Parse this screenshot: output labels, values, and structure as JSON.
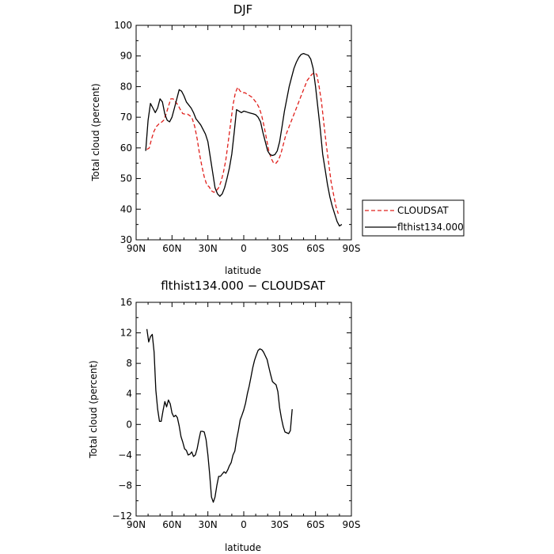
{
  "chart_data": [
    {
      "type": "line",
      "title": "DJF",
      "xlabel": "latitude",
      "ylabel": "Total cloud (percent)",
      "xlim": [
        90,
        -90
      ],
      "ylim": [
        30,
        100
      ],
      "xticks": [
        90,
        60,
        30,
        0,
        -30,
        -60,
        -90
      ],
      "xticklabels": [
        "90N",
        "60N",
        "30N",
        "0",
        "30S",
        "60S",
        "90S"
      ],
      "yticks": [
        30,
        40,
        50,
        60,
        70,
        80,
        90,
        100
      ],
      "legend": "right",
      "series": [
        {
          "name": "CLOUDSAT",
          "color": "#e0201c",
          "dash": true,
          "points": [
            [
              81,
              59.5
            ],
            [
              79,
              60
            ],
            [
              77,
              63
            ],
            [
              75,
              65.5
            ],
            [
              73,
              67
            ],
            [
              71,
              67.8
            ],
            [
              69,
              68.3
            ],
            [
              67,
              69
            ],
            [
              65,
              71
            ],
            [
              63,
              73.5
            ],
            [
              61,
              76
            ],
            [
              59,
              76
            ],
            [
              57,
              75
            ],
            [
              55,
              74
            ],
            [
              53,
              72.5
            ],
            [
              51,
              71.2
            ],
            [
              49,
              71
            ],
            [
              47,
              71
            ],
            [
              45,
              70.5
            ],
            [
              43,
              69.5
            ],
            [
              41,
              67
            ],
            [
              39,
              63
            ],
            [
              37,
              58
            ],
            [
              35,
              54
            ],
            [
              33,
              50.5
            ],
            [
              31,
              48
            ],
            [
              29,
              47.3
            ],
            [
              27,
              46
            ],
            [
              25,
              45.5
            ],
            [
              23,
              46
            ],
            [
              21,
              47
            ],
            [
              19,
              49
            ],
            [
              17,
              52
            ],
            [
              15,
              56
            ],
            [
              13,
              62
            ],
            [
              11,
              68
            ],
            [
              9,
              74
            ],
            [
              7,
              78
            ],
            [
              5,
              79.8
            ],
            [
              3,
              78.5
            ],
            [
              1,
              78
            ],
            [
              -1,
              78
            ],
            [
              -3,
              77.5
            ],
            [
              -5,
              77
            ],
            [
              -7,
              76.5
            ],
            [
              -9,
              75.5
            ],
            [
              -11,
              74.5
            ],
            [
              -13,
              73
            ],
            [
              -15,
              70.5
            ],
            [
              -17,
              67
            ],
            [
              -19,
              63
            ],
            [
              -21,
              59
            ],
            [
              -23,
              56.5
            ],
            [
              -25,
              55
            ],
            [
              -27,
              55
            ],
            [
              -29,
              56
            ],
            [
              -31,
              58
            ],
            [
              -33,
              61
            ],
            [
              -35,
              64
            ],
            [
              -37,
              66
            ],
            [
              -39,
              68
            ],
            [
              -41,
              70
            ],
            [
              -43,
              72
            ],
            [
              -45,
              74
            ],
            [
              -47,
              76
            ],
            [
              -49,
              78
            ],
            [
              -51,
              80
            ],
            [
              -53,
              82
            ],
            [
              -55,
              83
            ],
            [
              -57,
              84
            ],
            [
              -59,
              84.5
            ],
            [
              -61,
              84
            ],
            [
              -63,
              80
            ],
            [
              -65,
              75
            ],
            [
              -67,
              68
            ],
            [
              -69,
              61
            ],
            [
              -71,
              55
            ],
            [
              -73,
              49
            ],
            [
              -75,
              45
            ],
            [
              -77,
              41
            ],
            [
              -79,
              38.5
            ]
          ]
        },
        {
          "name": "flthist134.000",
          "color": "#000000",
          "dash": false,
          "points": [
            [
              82,
              59
            ],
            [
              80,
              69
            ],
            [
              78,
              74.5
            ],
            [
              76,
              73
            ],
            [
              74,
              71.5
            ],
            [
              72,
              73
            ],
            [
              70,
              76
            ],
            [
              68,
              75
            ],
            [
              66,
              71
            ],
            [
              64,
              69
            ],
            [
              62,
              68.5
            ],
            [
              60,
              70
            ],
            [
              58,
              73
            ],
            [
              56,
              76
            ],
            [
              54,
              79
            ],
            [
              52,
              78.5
            ],
            [
              50,
              77
            ],
            [
              48,
              75
            ],
            [
              46,
              74
            ],
            [
              44,
              73
            ],
            [
              42,
              71.5
            ],
            [
              40,
              69.5
            ],
            [
              38,
              68.5
            ],
            [
              36,
              67.5
            ],
            [
              34,
              66
            ],
            [
              32,
              64.5
            ],
            [
              30,
              62
            ],
            [
              28,
              57
            ],
            [
              26,
              52
            ],
            [
              24,
              47
            ],
            [
              22,
              45
            ],
            [
              20,
              44.2
            ],
            [
              18,
              45
            ],
            [
              16,
              47
            ],
            [
              14,
              50
            ],
            [
              12,
              53.5
            ],
            [
              10,
              58
            ],
            [
              8,
              65
            ],
            [
              6,
              72.5
            ],
            [
              4,
              72
            ],
            [
              2,
              71.5
            ],
            [
              0,
              72
            ],
            [
              -2,
              71.8
            ],
            [
              -4,
              71.5
            ],
            [
              -6,
              71.3
            ],
            [
              -8,
              71.1
            ],
            [
              -10,
              70.8
            ],
            [
              -12,
              70
            ],
            [
              -14,
              68.5
            ],
            [
              -16,
              65
            ],
            [
              -18,
              62
            ],
            [
              -20,
              59
            ],
            [
              -22,
              57.8
            ],
            [
              -24,
              57.5
            ],
            [
              -26,
              57.8
            ],
            [
              -28,
              59
            ],
            [
              -30,
              62
            ],
            [
              -32,
              67
            ],
            [
              -34,
              72
            ],
            [
              -36,
              76
            ],
            [
              -38,
              80
            ],
            [
              -40,
              83
            ],
            [
              -42,
              86
            ],
            [
              -44,
              88
            ],
            [
              -46,
              89.5
            ],
            [
              -48,
              90.5
            ],
            [
              -50,
              90.8
            ],
            [
              -52,
              90.5
            ],
            [
              -54,
              90.2
            ],
            [
              -56,
              89
            ],
            [
              -58,
              86
            ],
            [
              -60,
              80
            ],
            [
              -62,
              73
            ],
            [
              -64,
              66
            ],
            [
              -66,
              58
            ],
            [
              -68,
              53
            ],
            [
              -70,
              48
            ],
            [
              -72,
              44
            ],
            [
              -74,
              41
            ],
            [
              -76,
              38.5
            ],
            [
              -78,
              36
            ],
            [
              -80,
              34.5
            ],
            [
              -82,
              35
            ]
          ]
        }
      ]
    },
    {
      "type": "line",
      "title": "flthist134.000 − CLOUDSAT",
      "xlabel": "latitude",
      "ylabel": "Total cloud (percent)",
      "xlim": [
        90,
        -90
      ],
      "ylim": [
        -12,
        16
      ],
      "xticks": [
        90,
        60,
        30,
        0,
        -30,
        -60,
        -90
      ],
      "xticklabels": [
        "90N",
        "60N",
        "30N",
        "0",
        "30S",
        "60S",
        "90S"
      ],
      "yticks": [
        -12,
        -8,
        -4,
        0,
        4,
        8,
        12,
        16
      ],
      "series": [
        {
          "name": "",
          "color": "#000000",
          "dash": false,
          "points": [
            [
              81,
              12.5
            ],
            [
              79.5,
              10.8
            ],
            [
              78,
              11.5
            ],
            [
              76.5,
              11.8
            ],
            [
              75,
              9.5
            ],
            [
              73.5,
              4.5
            ],
            [
              72,
              2
            ],
            [
              70.5,
              0.4
            ],
            [
              69,
              0.4
            ],
            [
              67.5,
              1.8
            ],
            [
              66,
              3
            ],
            [
              64.5,
              2.3
            ],
            [
              63,
              3.2
            ],
            [
              61.5,
              2.7
            ],
            [
              60,
              1.5
            ],
            [
              58.5,
              1
            ],
            [
              57,
              1.2
            ],
            [
              55.5,
              0.9
            ],
            [
              54,
              -0.2
            ],
            [
              52.5,
              -1.6
            ],
            [
              51,
              -2.3
            ],
            [
              49.5,
              -3.2
            ],
            [
              48,
              -3.4
            ],
            [
              46.5,
              -4
            ],
            [
              45,
              -3.9
            ],
            [
              43.5,
              -3.6
            ],
            [
              42,
              -4.2
            ],
            [
              40.5,
              -4
            ],
            [
              39,
              -3.2
            ],
            [
              37.5,
              -2
            ],
            [
              36,
              -0.9
            ],
            [
              34.5,
              -0.9
            ],
            [
              33,
              -1
            ],
            [
              31.5,
              -2
            ],
            [
              30,
              -4
            ],
            [
              28.5,
              -6.5
            ],
            [
              27,
              -9.5
            ],
            [
              25.5,
              -10.2
            ],
            [
              24,
              -9.5
            ],
            [
              22.5,
              -8
            ],
            [
              21,
              -6.8
            ],
            [
              19.5,
              -6.8
            ],
            [
              18,
              -6.5
            ],
            [
              16.5,
              -6.2
            ],
            [
              15,
              -6.4
            ],
            [
              13.5,
              -6
            ],
            [
              12,
              -5.4
            ],
            [
              10.5,
              -5
            ],
            [
              9,
              -4
            ],
            [
              7.5,
              -3.5
            ],
            [
              6,
              -2
            ],
            [
              4.5,
              -0.8
            ],
            [
              3,
              0.6
            ],
            [
              1.5,
              1.2
            ],
            [
              0,
              1.9
            ],
            [
              -1.5,
              2.8
            ],
            [
              -3,
              4
            ],
            [
              -4.5,
              5
            ],
            [
              -6,
              6.2
            ],
            [
              -7.5,
              7.4
            ],
            [
              -9,
              8.4
            ],
            [
              -10.5,
              9.1
            ],
            [
              -12,
              9.7
            ],
            [
              -13.5,
              9.9
            ],
            [
              -15,
              9.8
            ],
            [
              -16.5,
              9.5
            ],
            [
              -18,
              9
            ],
            [
              -19.5,
              8.5
            ],
            [
              -21,
              7.5
            ],
            [
              -22.5,
              6.5
            ],
            [
              -24,
              5.6
            ],
            [
              -25.5,
              5.4
            ],
            [
              -27,
              5.2
            ],
            [
              -28.5,
              4.3
            ],
            [
              -30,
              2.2
            ],
            [
              -31.5,
              0.8
            ],
            [
              -33,
              -0.3
            ],
            [
              -34.5,
              -1
            ],
            [
              -36,
              -1.1
            ],
            [
              -37.5,
              -1.2
            ],
            [
              -39,
              -0.8
            ],
            [
              -40.5,
              2
            ]
          ]
        }
      ]
    }
  ]
}
